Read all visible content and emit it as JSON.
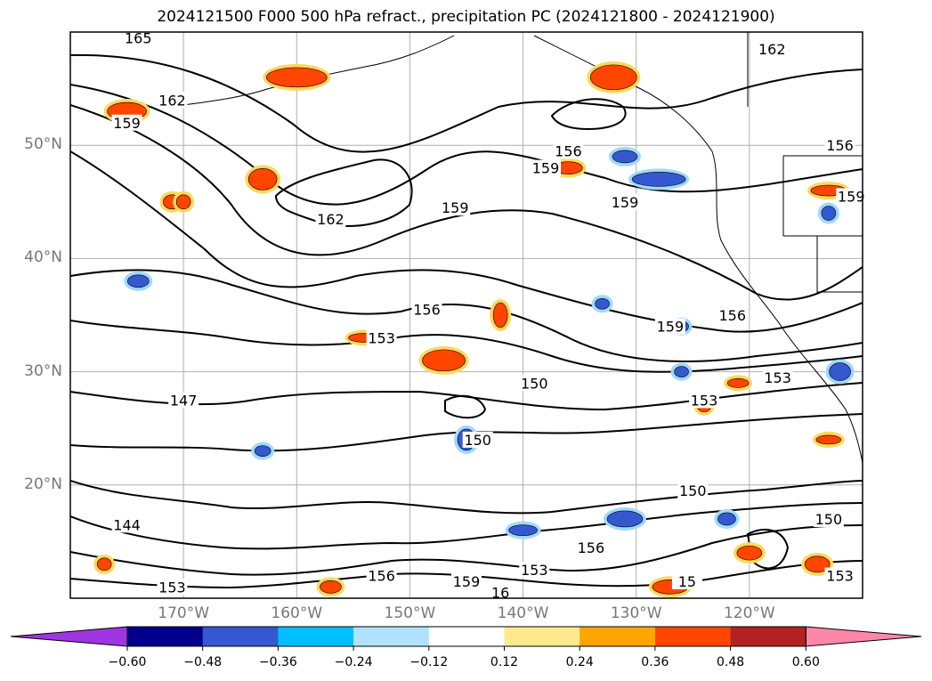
{
  "title": "2024121500 F000 500 hPa refract., precipitation PC (2024121800 - 2024121900)",
  "map": {
    "lon_range": [
      -180,
      -110
    ],
    "lat_range": [
      10,
      60
    ],
    "lat_ticks": [
      {
        "value": 20,
        "label": "20°N"
      },
      {
        "value": 30,
        "label": "30°N"
      },
      {
        "value": 40,
        "label": "40°N"
      },
      {
        "value": 50,
        "label": "50°N"
      }
    ],
    "lon_ticks": [
      {
        "value": -170,
        "label": "170°W"
      },
      {
        "value": -160,
        "label": "160°W"
      },
      {
        "value": -150,
        "label": "150°W"
      },
      {
        "value": -140,
        "label": "140°W"
      },
      {
        "value": -130,
        "label": "130°W"
      },
      {
        "value": -120,
        "label": "120°W"
      }
    ],
    "contour_labels": [
      {
        "text": "165",
        "lon": -174,
        "lat": 59.5
      },
      {
        "text": "162",
        "lon": -171,
        "lat": 54
      },
      {
        "text": "159",
        "lon": -175,
        "lat": 52
      },
      {
        "text": "162",
        "lon": -118,
        "lat": 58.5
      },
      {
        "text": "156",
        "lon": -136,
        "lat": 49.5
      },
      {
        "text": "159",
        "lon": -138,
        "lat": 48
      },
      {
        "text": "159",
        "lon": -131,
        "lat": 45
      },
      {
        "text": "162",
        "lon": -157,
        "lat": 43.5
      },
      {
        "text": "159",
        "lon": -146,
        "lat": 44.5
      },
      {
        "text": "156",
        "lon": -112,
        "lat": 50
      },
      {
        "text": "159",
        "lon": -111,
        "lat": 45.5
      },
      {
        "text": "156",
        "lon": -121.5,
        "lat": 35
      },
      {
        "text": "159",
        "lon": -127,
        "lat": 34
      },
      {
        "text": "153",
        "lon": -117.5,
        "lat": 29.5
      },
      {
        "text": "153",
        "lon": -124,
        "lat": 27.5
      },
      {
        "text": "150",
        "lon": -139,
        "lat": 29
      },
      {
        "text": "156",
        "lon": -148.5,
        "lat": 35.5
      },
      {
        "text": "153",
        "lon": -152.5,
        "lat": 33
      },
      {
        "text": "147",
        "lon": -170,
        "lat": 27.5
      },
      {
        "text": "150",
        "lon": -144,
        "lat": 24
      },
      {
        "text": "150",
        "lon": -125,
        "lat": 19.5
      },
      {
        "text": "150",
        "lon": -113,
        "lat": 17
      },
      {
        "text": "144",
        "lon": -175,
        "lat": 16.5
      },
      {
        "text": "156",
        "lon": -134,
        "lat": 14.5
      },
      {
        "text": "153",
        "lon": -139,
        "lat": 12.5
      },
      {
        "text": "159",
        "lon": -145,
        "lat": 11.5
      },
      {
        "text": "156",
        "lon": -152.5,
        "lat": 12
      },
      {
        "text": "16",
        "lon": -142,
        "lat": 10.5
      },
      {
        "text": "153",
        "lon": -171,
        "lat": 11
      },
      {
        "text": "153",
        "lon": -112,
        "lat": 12
      },
      {
        "text": "15",
        "lon": -125.5,
        "lat": 11.5
      }
    ]
  },
  "colorbar": {
    "colors": [
      "#9f35e0",
      "#00008b",
      "#3558d0",
      "#00bfff",
      "#b0e2ff",
      "#ffffff",
      "#ffe98c",
      "#ffa500",
      "#ff4500",
      "#b22222",
      "#ff86a8"
    ],
    "tick_labels": [
      "−0.60",
      "−0.48",
      "−0.36",
      "−0.24",
      "−0.12",
      "0.12",
      "0.24",
      "0.36",
      "0.48",
      "0.60"
    ]
  }
}
